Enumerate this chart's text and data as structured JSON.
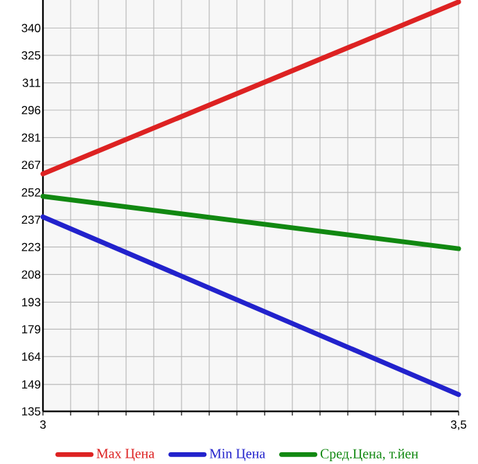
{
  "chart_data": {
    "type": "line",
    "x": [
      3,
      3.5
    ],
    "series": [
      {
        "name": "Max Цена",
        "color": "#dd2222",
        "values": [
          262,
          354
        ]
      },
      {
        "name": "Min Цена",
        "color": "#2222cc",
        "values": [
          239,
          144
        ]
      },
      {
        "name": "Сред.Цена, т.йен",
        "color": "#118811",
        "values": [
          250,
          222
        ]
      }
    ],
    "xlim": [
      3,
      3.5
    ],
    "xticks": [
      {
        "value": 3,
        "label": "3"
      },
      {
        "value": 3.0333,
        "label": null
      },
      {
        "value": 3.0667,
        "label": null
      },
      {
        "value": 3.1,
        "label": null
      },
      {
        "value": 3.1333,
        "label": null
      },
      {
        "value": 3.1667,
        "label": null
      },
      {
        "value": 3.2,
        "label": null
      },
      {
        "value": 3.2333,
        "label": null
      },
      {
        "value": 3.2667,
        "label": null
      },
      {
        "value": 3.3,
        "label": null
      },
      {
        "value": 3.3333,
        "label": null
      },
      {
        "value": 3.3667,
        "label": null
      },
      {
        "value": 3.4,
        "label": null
      },
      {
        "value": 3.4333,
        "label": null
      },
      {
        "value": 3.4667,
        "label": null
      },
      {
        "value": 3.5,
        "label": "3,5"
      }
    ],
    "ylim": [
      135,
      355
    ],
    "yticks": [
      135,
      {
        "value": 149.4,
        "label": "149"
      },
      {
        "value": 164.3,
        "label": "164"
      },
      {
        "value": 178.9,
        "label": "179"
      },
      {
        "value": 193.4,
        "label": "193"
      },
      {
        "value": 208.2,
        "label": "208"
      },
      {
        "value": 222.9,
        "label": "223"
      },
      {
        "value": 237.5,
        "label": "237"
      },
      {
        "value": 252.1,
        "label": "252"
      },
      {
        "value": 266.8,
        "label": "267"
      },
      {
        "value": 281.4,
        "label": "281"
      },
      {
        "value": 296.1,
        "label": "296"
      },
      {
        "value": 310.7,
        "label": "311"
      },
      {
        "value": 325.4,
        "label": "325"
      },
      340
    ],
    "grid": true,
    "legend": "bottom",
    "marker": "none",
    "line_style": "solid"
  }
}
